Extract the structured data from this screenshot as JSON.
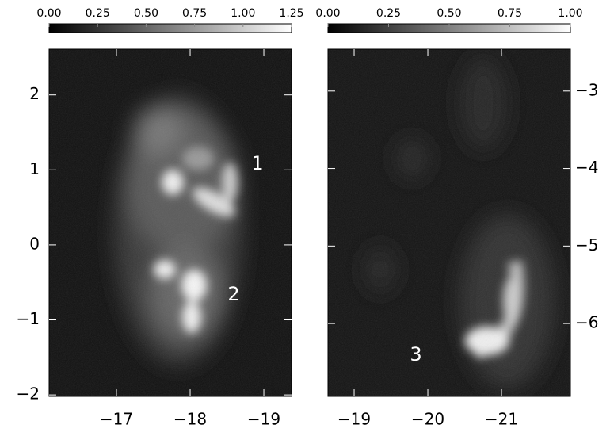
{
  "chart_data": [
    {
      "type": "image",
      "yaxis_side": "left",
      "xlim": [
        -16.086,
        -19.376
      ],
      "ylim": [
        -2.02,
        2.61
      ],
      "xticks": [
        {
          "value": -17,
          "label": "−17"
        },
        {
          "value": -18,
          "label": "−18"
        },
        {
          "value": -19,
          "label": "−19"
        }
      ],
      "yticks": [
        {
          "value": -2,
          "label": "−2"
        },
        {
          "value": -1,
          "label": "−1"
        },
        0,
        1,
        2
      ],
      "colorbar": {
        "lim": [
          0,
          1.25
        ],
        "ticks": [
          {
            "value": 0,
            "label": "0.00"
          },
          {
            "value": 0.25,
            "label": "0.25"
          },
          {
            "value": 0.5,
            "label": "0.50"
          },
          {
            "value": 0.75,
            "label": "0.75"
          },
          {
            "value": 1,
            "label": "1.00"
          },
          {
            "value": 1.25,
            "label": "1.25"
          }
        ]
      },
      "annotations": [
        "1",
        "2"
      ]
    },
    {
      "type": "image",
      "yaxis_side": "right",
      "xlim": [
        -18.645,
        -21.935
      ],
      "ylim": [
        -6.94,
        -2.46
      ],
      "xticks": [
        {
          "value": -19,
          "label": "−19"
        },
        {
          "value": -20,
          "label": "−20"
        },
        {
          "value": -21,
          "label": "−21"
        }
      ],
      "yticks": [
        {
          "value": -6,
          "label": "−6"
        },
        {
          "value": -5,
          "label": "−5"
        },
        {
          "value": -4,
          "label": "−4"
        },
        {
          "value": -3,
          "label": "−3"
        }
      ],
      "colorbar": {
        "lim": [
          0,
          1
        ],
        "ticks": [
          {
            "value": 0,
            "label": "0.00"
          },
          {
            "value": 0.25,
            "label": "0.25"
          },
          {
            "value": 0.5,
            "label": "0.50"
          },
          {
            "value": 0.75,
            "label": "0.75"
          },
          {
            "value": 1,
            "label": "1.00"
          }
        ]
      },
      "annotations": [
        "3"
      ]
    }
  ]
}
